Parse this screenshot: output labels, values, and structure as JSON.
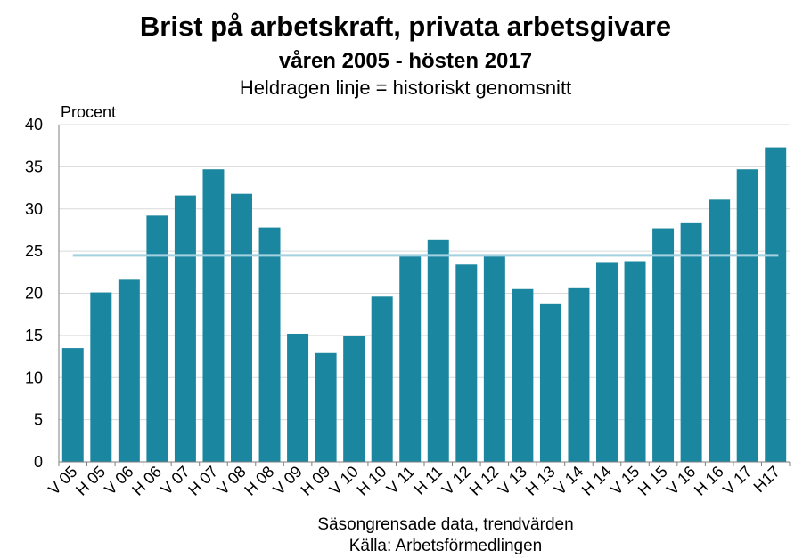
{
  "chart_data": {
    "type": "bar",
    "title": "Brist på arbetskraft, privata arbetsgivare",
    "subtitle": "våren 2005 - hösten 2017",
    "note": "Heldragen linje = historiskt genomsnitt",
    "ylabel": "Procent",
    "xlabel": "Säsongrensade data, trendvärden",
    "source": "Källa: Arbetsförmedlingen",
    "ylim": [
      0,
      40
    ],
    "yticks": [
      0,
      5,
      10,
      15,
      20,
      25,
      30,
      35,
      40
    ],
    "grid": true,
    "categories": [
      "V 05",
      "H 05",
      "V 06",
      "H 06",
      "V 07",
      "H 07",
      "V 08",
      "H 08",
      "V 09",
      "H 09",
      "V 10",
      "H 10",
      "V 11",
      "H 11",
      "V 12",
      "H 12",
      "V 13",
      "H 13",
      "V 14",
      "H 14",
      "V 15",
      "H 15",
      "V 16",
      "H 16",
      "V 17",
      "H17"
    ],
    "series": [
      {
        "name": "Brist på arbetskraft",
        "values": [
          13.5,
          20.1,
          21.6,
          29.2,
          31.6,
          34.7,
          31.8,
          27.8,
          15.2,
          12.9,
          14.9,
          19.6,
          24.4,
          26.3,
          23.4,
          24.4,
          20.5,
          18.7,
          20.6,
          23.7,
          23.8,
          27.7,
          28.3,
          31.1,
          34.7,
          37.3
        ]
      }
    ],
    "reference_line": {
      "name": "Historiskt genomsnitt",
      "value": 24.5
    },
    "colors": {
      "bar": "#1b86a0",
      "reference_line": "#a3d1e0",
      "grid": "#d9d9d9",
      "axis": "#7f7f7f"
    }
  }
}
